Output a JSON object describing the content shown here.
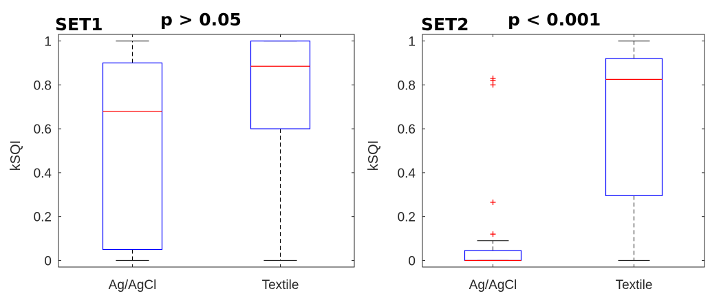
{
  "chart_data": [
    {
      "type": "boxplot",
      "title": "SET1",
      "annotation": "p > 0.05",
      "ylabel": "kSQI",
      "xlabel": "",
      "categories": [
        "Ag/AgCl",
        "Textile"
      ],
      "yticks": [
        "0",
        "0.2",
        "0.4",
        "0.6",
        "0.8",
        "1"
      ],
      "ylim": [
        -0.03,
        1.03
      ],
      "grid": false,
      "colors": {
        "box": "#0000ff",
        "median": "#ff0000",
        "whisker": "#000000",
        "outlier": "#ff0000"
      },
      "boxes": [
        {
          "name": "Ag/AgCl",
          "whisker_low": 0.0,
          "q1": 0.05,
          "median": 0.68,
          "q3": 0.9,
          "whisker_high": 1.0,
          "outliers": []
        },
        {
          "name": "Textile",
          "whisker_low": 0.0,
          "q1": 0.6,
          "median": 0.885,
          "q3": 1.0,
          "whisker_high": 1.0,
          "outliers": []
        }
      ]
    },
    {
      "type": "boxplot",
      "title": "SET2",
      "annotation": "p < 0.001",
      "ylabel": "kSQI",
      "xlabel": "",
      "categories": [
        "Ag/AgCl",
        "Textile"
      ],
      "yticks": [
        "0",
        "0.2",
        "0.4",
        "0.6",
        "0.8",
        "1"
      ],
      "ylim": [
        -0.03,
        1.03
      ],
      "grid": false,
      "colors": {
        "box": "#0000ff",
        "median": "#ff0000",
        "whisker": "#000000",
        "outlier": "#ff0000"
      },
      "boxes": [
        {
          "name": "Ag/AgCl",
          "whisker_low": 0.0,
          "q1": 0.0,
          "median": 0.0,
          "q3": 0.045,
          "whisker_high": 0.09,
          "outliers": [
            0.12,
            0.265,
            0.8,
            0.82,
            0.83
          ]
        },
        {
          "name": "Textile",
          "whisker_low": 0.0,
          "q1": 0.295,
          "median": 0.825,
          "q3": 0.92,
          "whisker_high": 1.0,
          "outliers": []
        }
      ]
    }
  ]
}
